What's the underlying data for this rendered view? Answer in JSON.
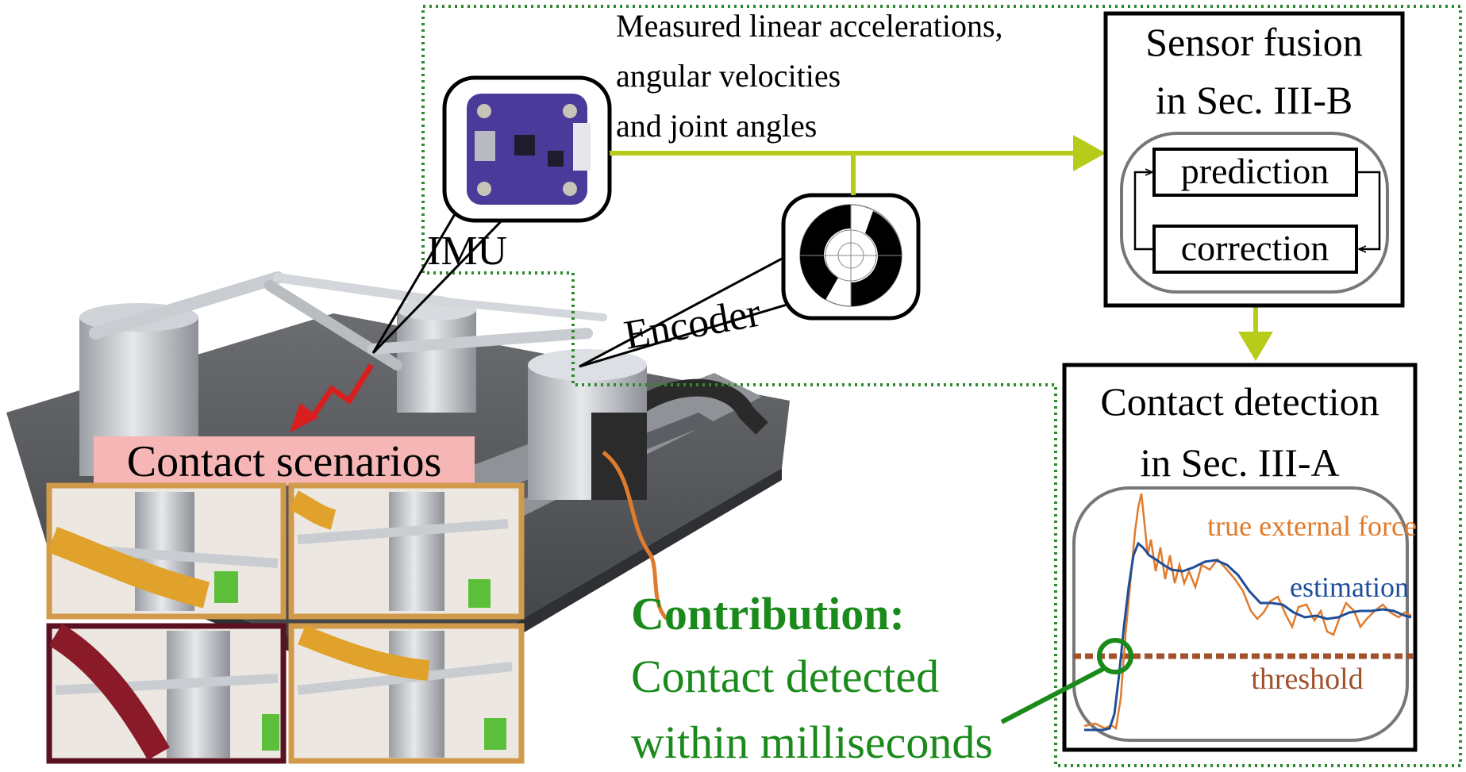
{
  "top_label": {
    "line1": "Measured linear accelerations,",
    "line2": "angular velocities",
    "line3": "and joint angles"
  },
  "imu": {
    "label": "IMU",
    "icon": "imu-board-icon"
  },
  "encoder": {
    "label": "Encoder",
    "icon": "encoder-disc-icon"
  },
  "sensor_fusion": {
    "title_line1": "Sensor fusion",
    "title_line2": "in Sec. III-B",
    "prediction": "prediction",
    "correction": "correction"
  },
  "contact_detection": {
    "title_line1": "Contact detection",
    "title_line2": "in Sec. III-A",
    "true_force_label": "true external force",
    "estimation_label": "estimation",
    "threshold_label": "threshold"
  },
  "contact_scenarios": {
    "label": "Contact scenarios"
  },
  "contribution": {
    "heading": "Contribution:",
    "line1": "Contact detected",
    "line2": "within milliseconds"
  },
  "colors": {
    "arrow_green": "#b7cc1a",
    "dotted_green": "#2f8a2f",
    "contribution_green": "#1a8a1a",
    "true_force_orange": "#e07b2c",
    "estimation_blue": "#1f4e99",
    "threshold_brown": "#a0522d",
    "scenario_pink": "#f7b6b6",
    "scenario_frame_orange": "#d19a4a",
    "scenario_frame_dark": "#5a1020",
    "red_arrow": "#d81e1e"
  }
}
